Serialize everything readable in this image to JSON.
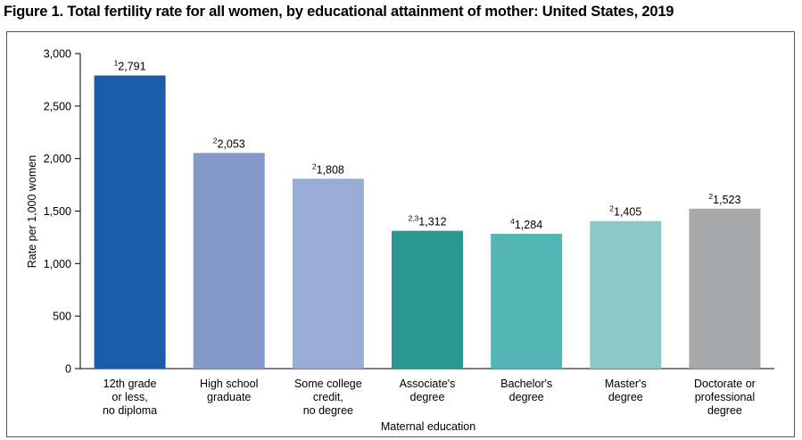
{
  "title": "Figure 1. Total fertility rate for all women, by educational attainment of mother: United States, 2019",
  "chart_data": {
    "type": "bar",
    "ylabel": "Rate per 1,000 women",
    "xlabel": "Maternal education",
    "ylim": [
      0,
      3000
    ],
    "yticks": [
      "0",
      "500",
      "1,000",
      "1,500",
      "2,000",
      "2,500",
      "3,000"
    ],
    "ytick_values": [
      0,
      500,
      1000,
      1500,
      2000,
      2500,
      3000
    ],
    "grid": false,
    "categories": [
      [
        "12th grade",
        "or less,",
        "no diploma"
      ],
      [
        "High school",
        "graduate"
      ],
      [
        "Some college",
        "credit,",
        "no degree"
      ],
      [
        "Associate's",
        "degree"
      ],
      [
        "Bachelor's",
        "degree"
      ],
      [
        "Master's",
        "degree"
      ],
      [
        "Doctorate or",
        "professional",
        "degree"
      ]
    ],
    "values": [
      2791,
      2053,
      1808,
      1312,
      1284,
      1405,
      1523
    ],
    "value_labels": [
      "2,791",
      "2,053",
      "1,808",
      "1,312",
      "1,284",
      "1,405",
      "1,523"
    ],
    "footnote_marks": [
      "1",
      "2",
      "2",
      "2,3",
      "4",
      "2",
      "2"
    ],
    "colors": [
      "#1a5ca8",
      "#8499c9",
      "#98acd6",
      "#2b9590",
      "#54b5b5",
      "#8cc8c8",
      "#a8a9ab"
    ]
  }
}
